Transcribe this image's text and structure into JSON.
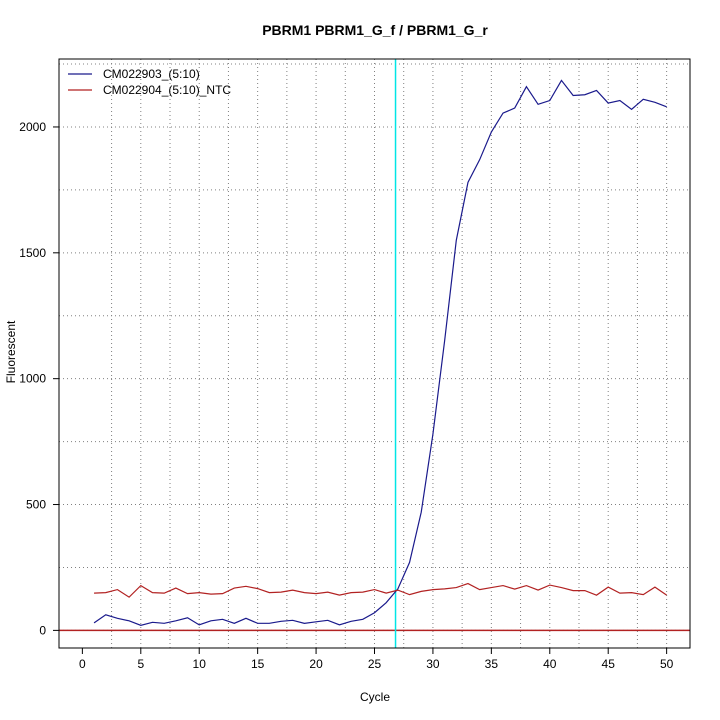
{
  "chart_data": {
    "type": "line",
    "title": "PBRM1  PBRM1_G_f / PBRM1_G_r",
    "xlabel": "Cycle",
    "ylabel": "Fluorescent",
    "xlim": [
      -2,
      52
    ],
    "ylim": [
      -70,
      2270
    ],
    "x_ticks": [
      0,
      5,
      10,
      15,
      20,
      25,
      30,
      35,
      40,
      45,
      50
    ],
    "x_tick_labels": [
      "0",
      "5",
      "10",
      "15",
      "20",
      "25",
      "30",
      "35",
      "40",
      "45",
      "50"
    ],
    "y_ticks": [
      0,
      500,
      1000,
      1500,
      2000
    ],
    "y_tick_labels": [
      "0",
      "500",
      "1000",
      "1500",
      "2000"
    ],
    "grid": true,
    "legend_position": "top-left",
    "threshold_cycle": 26.8,
    "threshold_color": "#00e5e5",
    "baseline_y": 0,
    "baseline_color": "#b22222",
    "x": [
      1,
      2,
      3,
      4,
      5,
      6,
      7,
      8,
      9,
      10,
      11,
      12,
      13,
      14,
      15,
      16,
      17,
      18,
      19,
      20,
      21,
      22,
      23,
      24,
      25,
      26,
      27,
      28,
      29,
      30,
      31,
      32,
      33,
      34,
      35,
      36,
      37,
      38,
      39,
      40,
      41,
      42,
      43,
      44,
      45,
      46,
      47,
      48,
      49,
      50
    ],
    "series": [
      {
        "name": "CM022903_(5:10)",
        "color": "#1a1a8c",
        "values": [
          30,
          62,
          48,
          38,
          20,
          32,
          28,
          38,
          50,
          22,
          38,
          44,
          28,
          48,
          28,
          28,
          36,
          40,
          28,
          34,
          40,
          22,
          36,
          44,
          70,
          110,
          165,
          270,
          470,
          780,
          1150,
          1550,
          1780,
          1870,
          1980,
          2055,
          2075,
          2160,
          2090,
          2105,
          2185,
          2125,
          2128,
          2145,
          2095,
          2105,
          2070,
          2110,
          2098,
          2080
        ]
      },
      {
        "name": "CM022904_(5:10)_NTC",
        "color": "#b22222",
        "values": [
          148,
          150,
          162,
          132,
          178,
          150,
          148,
          168,
          146,
          150,
          144,
          146,
          168,
          175,
          166,
          150,
          152,
          160,
          150,
          146,
          152,
          140,
          150,
          152,
          162,
          148,
          160,
          142,
          155,
          162,
          165,
          170,
          186,
          162,
          170,
          178,
          164,
          178,
          160,
          180,
          170,
          158,
          158,
          140,
          172,
          148,
          150,
          142,
          172,
          140
        ]
      }
    ]
  }
}
